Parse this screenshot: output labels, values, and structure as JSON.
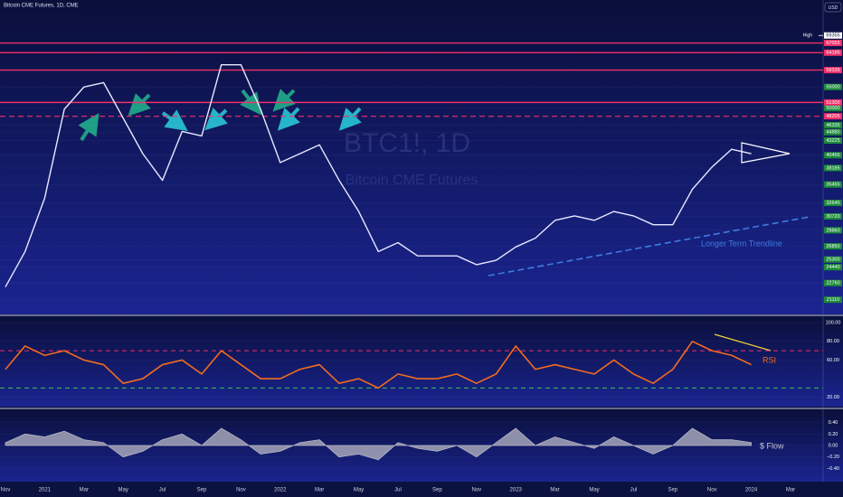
{
  "header": {
    "title": "Bitcoin CME Futures, 1D, CME",
    "currency": "USD"
  },
  "watermark": {
    "symbol": "BTC1!, 1D",
    "name": "Bitcoin CME Futures"
  },
  "chart_data": [
    {
      "type": "line",
      "log": true,
      "color": "#e8e8ff",
      "values": [
        22360,
        26220,
        33360,
        49760,
        55000,
        56100,
        47800,
        40730,
        36130,
        45020,
        44130,
        60780,
        60780,
        49760,
        39150,
        40730,
        42390,
        36130,
        31410,
        26220,
        27300,
        25720,
        25720,
        25720,
        24720,
        25210,
        26770,
        27860,
        30180,
        30790,
        30180,
        31410,
        30790,
        29590,
        29590,
        34720,
        38370,
        41560,
        40730,
        null,
        null
      ],
      "ylim": [
        20000,
        75000
      ],
      "yticks": [
        55000,
        50000,
        46335,
        44880,
        43225,
        40455,
        38185,
        35455,
        32645,
        30720,
        28860,
        26850,
        25300,
        24440,
        22760,
        21110
      ],
      "levels": [
        67055,
        64185,
        59335,
        51300
      ],
      "dashed_levels": [
        48205
      ],
      "level_color": "#f0306a",
      "high": {
        "label": "High",
        "value": 69355
      },
      "annotation": "Longer Term Trendline"
    },
    {
      "type": "line",
      "color": "#f26b1d",
      "values": [
        50,
        75,
        65,
        70,
        60,
        55,
        35,
        40,
        55,
        60,
        45,
        70,
        55,
        40,
        40,
        50,
        55,
        35,
        40,
        30,
        45,
        40,
        40,
        45,
        35,
        45,
        75,
        50,
        55,
        50,
        45,
        60,
        45,
        35,
        50,
        80,
        70,
        65,
        55,
        null,
        null
      ],
      "ylim": [
        10,
        105
      ],
      "yticks": [
        {
          "value": 100,
          "label": "100.00"
        },
        {
          "value": 80,
          "label": "80.00"
        },
        {
          "value": 60,
          "label": "60.00"
        },
        {
          "value": 20,
          "label": "20.00"
        }
      ],
      "levels": [
        70,
        30
      ],
      "level_colors": [
        "#f0306a",
        "#3fbf5a"
      ],
      "annotation": "RSI"
    },
    {
      "type": "area",
      "color": "#b8b8c4",
      "categories": [
        "Nov",
        null,
        "2021",
        null,
        "Mar",
        null,
        "May",
        null,
        "Jul",
        null,
        "Sep",
        null,
        "Nov",
        null,
        "2022",
        null,
        "Mar",
        null,
        "May",
        null,
        "Jul",
        null,
        "Sep",
        null,
        "Nov",
        null,
        "2023",
        null,
        "Mar",
        null,
        "May",
        null,
        "Jul",
        null,
        "Sep",
        null,
        "Nov",
        null,
        "2024",
        null,
        "Mar"
      ],
      "values": [
        0.05,
        0.2,
        0.15,
        0.25,
        0.1,
        0.05,
        -0.2,
        -0.1,
        0.1,
        0.2,
        0.0,
        0.3,
        0.1,
        -0.15,
        -0.1,
        0.05,
        0.1,
        -0.2,
        -0.15,
        -0.25,
        0.05,
        -0.05,
        -0.1,
        0.0,
        -0.2,
        0.05,
        0.3,
        0.0,
        0.15,
        0.05,
        -0.05,
        0.15,
        0.0,
        -0.15,
        0.0,
        0.3,
        0.1,
        0.1,
        0.05,
        null,
        null
      ],
      "ylim": [
        -0.6,
        0.6
      ],
      "yticks": [
        {
          "value": 0.4,
          "label": "0.40"
        },
        {
          "value": 0.2,
          "label": "0.20"
        },
        {
          "value": 0,
          "label": "0.00"
        },
        {
          "value": -0.2,
          "label": "−0.20"
        },
        {
          "value": -0.4,
          "label": "−0.40"
        }
      ],
      "annotation": "$ Flow"
    }
  ]
}
